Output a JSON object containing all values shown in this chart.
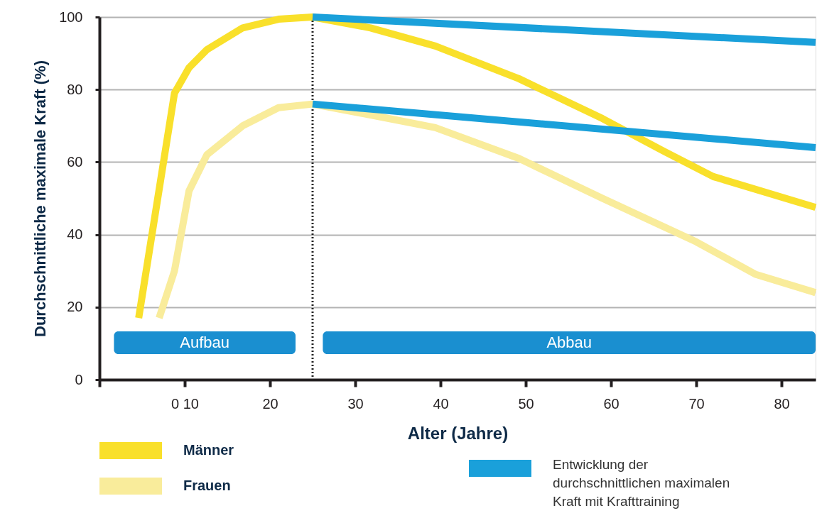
{
  "chart_data": {
    "type": "line",
    "xlabel": "Alter (Jahre)",
    "ylabel": "Durchschnittliche maximale Kraft (%)",
    "xlim": [
      0,
      84
    ],
    "ylim": [
      0,
      100
    ],
    "xticks": [
      {
        "value": 0,
        "label": null
      },
      {
        "value": 10,
        "label": "0 10"
      },
      20,
      30,
      40,
      50,
      60,
      70,
      80
    ],
    "yticks": [
      0,
      20,
      40,
      60,
      80,
      100
    ],
    "grid": "y",
    "legend": "bottom",
    "marker": "none",
    "line_style": "solid",
    "ref_lines": [
      {
        "axis": "x",
        "value": 25,
        "label": null,
        "color": "#222222",
        "line_style": "dotted"
      }
    ],
    "bands": [
      {
        "axis": "x",
        "from": 1.7,
        "to": 23,
        "label": "Aufbau",
        "color": "#1a8fd0"
      },
      {
        "axis": "x",
        "from": 26.2,
        "to": 84,
        "label": "Abbau",
        "color": "#1a8fd0"
      }
    ],
    "series": [
      {
        "name": "Männer",
        "color": "#f9e02b",
        "x": [
          4.6,
          8.8,
          10.5,
          12.6,
          16.8,
          21,
          25,
          31.8,
          39.4,
          49.2,
          59,
          66.2,
          72,
          84
        ],
        "values": [
          17,
          79,
          86,
          91,
          97,
          99.4,
          100,
          97,
          92,
          83,
          72,
          63,
          56,
          47.5
        ]
      },
      {
        "name": "Frauen",
        "color": "#f9ec9b",
        "x": [
          7,
          8.8,
          10.5,
          12.6,
          16.8,
          21,
          25,
          31.8,
          39.4,
          49.2,
          59,
          70,
          77,
          84
        ],
        "values": [
          17,
          30,
          52,
          62,
          70,
          75,
          76,
          73,
          69.5,
          61,
          50,
          38,
          29,
          24
        ]
      },
      {
        "name": "Entwicklung der durchschnittlichen maximalen Kraft mit Krafttraining",
        "color": "#1aa0da",
        "x": [
          25,
          84
        ],
        "values": [
          100,
          93
        ]
      },
      {
        "color": "#1aa0da",
        "x": [
          25,
          84
        ],
        "values": [
          76,
          64
        ]
      }
    ]
  }
}
